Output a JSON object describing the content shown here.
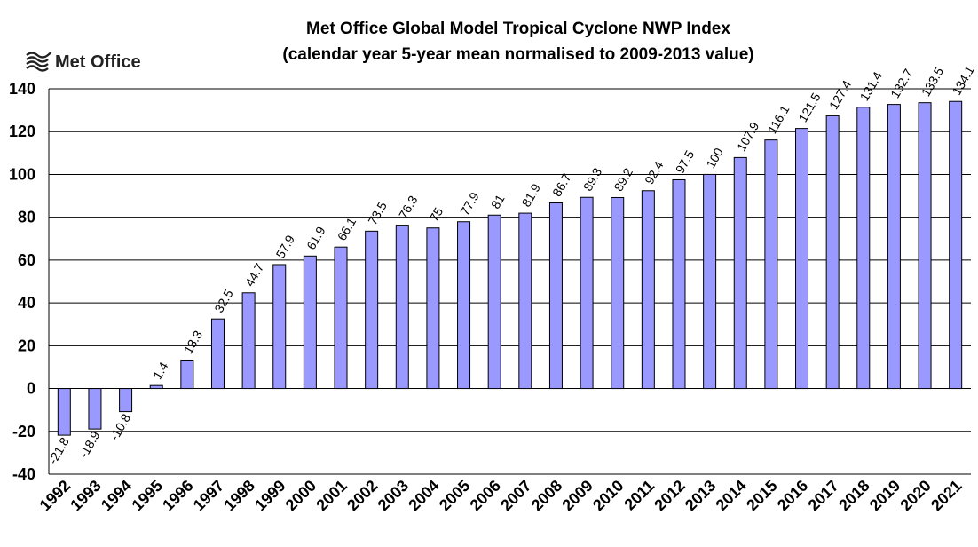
{
  "logo": {
    "text": "Met Office",
    "icon": "met-office-waves-icon"
  },
  "chart_data": {
    "type": "bar",
    "title": "Met Office Global Model Tropical Cyclone NWP Index",
    "subtitle": "(calendar year 5-year mean normalised to 2009-2013 value)",
    "xlabel": "",
    "ylabel": "",
    "ylim": [
      -40,
      140
    ],
    "yticks": [
      -40,
      -20,
      0,
      20,
      40,
      60,
      80,
      100,
      120,
      140
    ],
    "grid": true,
    "bar_color": "#9999ff",
    "categories": [
      "1992",
      "1993",
      "1994",
      "1995",
      "1996",
      "1997",
      "1998",
      "1999",
      "2000",
      "2001",
      "2002",
      "2003",
      "2004",
      "2005",
      "2006",
      "2007",
      "2008",
      "2009",
      "2010",
      "2011",
      "2012",
      "2013",
      "2014",
      "2015",
      "2016",
      "2017",
      "2018",
      "2019",
      "2020",
      "2021"
    ],
    "values": [
      -21.8,
      -18.9,
      -10.8,
      1.4,
      13.3,
      32.5,
      44.7,
      57.9,
      61.9,
      66.1,
      73.5,
      76.3,
      75,
      77.9,
      81,
      81.9,
      86.7,
      89.3,
      89.2,
      92.4,
      97.5,
      100,
      107.9,
      116.1,
      121.5,
      127.4,
      131.4,
      132.7,
      133.5,
      134.1
    ],
    "data_labels": [
      "-21.8",
      "-18.9",
      "-10.8",
      "1.4",
      "13.3",
      "32.5",
      "44.7",
      "57.9",
      "61.9",
      "66.1",
      "73.5",
      "76.3",
      "75",
      "77.9",
      "81",
      "81.9",
      "86.7",
      "89.3",
      "89.2",
      "92.4",
      "97.5",
      "100",
      "107.9",
      "116.1",
      "121.5",
      "127.4",
      "131.4",
      "132.7",
      "133.5",
      "134.1"
    ]
  }
}
